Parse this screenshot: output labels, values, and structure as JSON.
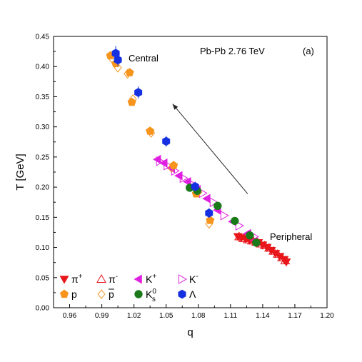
{
  "chart_data": {
    "type": "scatter",
    "xlabel": "q",
    "ylabel": "T [GeV]",
    "xlim": [
      0.945,
      1.2
    ],
    "ylim": [
      0.0,
      0.45
    ],
    "x_ticks": [
      "0.96",
      "0.99",
      "1.02",
      "1.05",
      "1.08",
      "1.11",
      "1.14",
      "1.17",
      "1.20"
    ],
    "y_ticks": [
      "0.00",
      "0.05",
      "0.10",
      "0.15",
      "0.20",
      "0.25",
      "0.30",
      "0.35",
      "0.40",
      "0.45"
    ],
    "grid": false,
    "legend_placement": "bottom-left",
    "annotations": {
      "system": "Pb-Pb  2.76 TeV",
      "panel": "(a)",
      "central": "Central",
      "peripheral": "Peripheral"
    },
    "arrow": {
      "from": [
        1.126,
        0.189
      ],
      "to": [
        1.056,
        0.338
      ]
    },
    "series": [
      {
        "name": "π+",
        "name_main": "π",
        "name_sup": "+",
        "color": "#e8161b",
        "marker": "triangle-down-filled",
        "x": [
          1.117,
          1.12,
          1.124,
          1.128,
          1.132,
          1.136,
          1.14,
          1.144,
          1.148,
          1.152,
          1.156,
          1.16,
          1.162
        ],
        "y": [
          0.118,
          0.116,
          0.114,
          0.112,
          0.11,
          0.108,
          0.104,
          0.1,
          0.095,
          0.09,
          0.085,
          0.08,
          0.076
        ]
      },
      {
        "name": "π-",
        "name_main": "π",
        "name_sup": "-",
        "color": "#e8161b",
        "marker": "triangle-up-open",
        "x": [
          1.118,
          1.122,
          1.126,
          1.13,
          1.134,
          1.138,
          1.142,
          1.146,
          1.15,
          1.154,
          1.158,
          1.161
        ],
        "y": [
          0.118,
          0.115,
          0.113,
          0.111,
          0.109,
          0.106,
          0.103,
          0.099,
          0.094,
          0.089,
          0.083,
          0.078
        ]
      },
      {
        "name": "K+",
        "name_main": "K",
        "name_sup": "+",
        "color": "#e020e0",
        "marker": "triangle-left-filled",
        "x": [
          1.042,
          1.048,
          1.055,
          1.062,
          1.07,
          1.079,
          1.088,
          1.098,
          1.112,
          1.126
        ],
        "y": [
          0.246,
          0.24,
          0.231,
          0.219,
          0.209,
          0.196,
          0.181,
          0.162,
          0.143,
          0.123
        ]
      },
      {
        "name": "K-",
        "name_main": "K",
        "name_sup": "-",
        "color": "#e020e0",
        "marker": "triangle-right-open",
        "x": [
          1.044,
          1.051,
          1.058,
          1.066,
          1.075,
          1.084,
          1.094,
          1.104,
          1.118,
          1.132
        ],
        "y": [
          0.243,
          0.236,
          0.227,
          0.215,
          0.204,
          0.19,
          0.175,
          0.153,
          0.136,
          0.118
        ]
      },
      {
        "name": "p",
        "name_main": "p",
        "name_sup": "",
        "color": "#f7941d",
        "marker": "pentagon-filled",
        "x": [
          0.998,
          1.003,
          1.016,
          1.018,
          1.035,
          1.057,
          1.078,
          1.091
        ],
        "y": [
          0.418,
          0.405,
          0.39,
          0.341,
          0.293,
          0.236,
          0.189,
          0.145
        ]
      },
      {
        "name": "p̄",
        "name_main": "p",
        "name_sup": "",
        "color": "#f7941d",
        "marker": "diamond-open",
        "x": [
          1.0,
          1.005,
          1.014,
          1.019,
          1.036,
          1.055,
          1.08,
          1.09
        ],
        "y": [
          0.412,
          0.398,
          0.388,
          0.346,
          0.29,
          0.232,
          0.192,
          0.139
        ]
      },
      {
        "name": "K0s",
        "name_main": "K",
        "name_sup": "0",
        "name_sub": "s",
        "color": "#1a7a1a",
        "marker": "circle-filled",
        "x": [
          1.072,
          1.079,
          1.098,
          1.114,
          1.128,
          1.134
        ],
        "y": [
          0.199,
          0.194,
          0.169,
          0.144,
          0.12,
          0.108
        ]
      },
      {
        "name": "Λ",
        "name_main": "Λ",
        "name_sup": "",
        "color": "#1530e0",
        "marker": "hexagon-filled",
        "x": [
          1.003,
          1.005,
          1.024,
          1.05,
          1.077,
          1.09
        ],
        "y": [
          0.422,
          0.411,
          0.357,
          0.276,
          0.201,
          0.157
        ],
        "err": [
          0.012,
          0.01,
          0.01,
          0.009,
          0.008,
          0.008
        ]
      }
    ]
  }
}
